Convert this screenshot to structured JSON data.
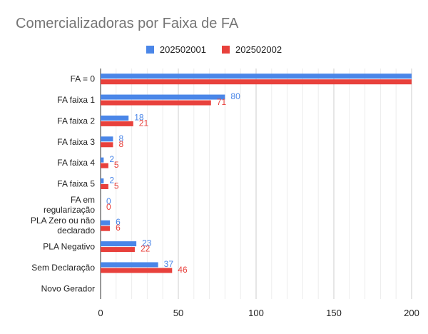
{
  "colors": {
    "series1": "#4a86e8",
    "series2": "#e8413c",
    "grid": "#d9d9d9",
    "axis": "#333333",
    "title": "#757575"
  },
  "chart_data": {
    "type": "bar",
    "orientation": "horizontal",
    "title": "Comercializadoras por Faixa de FA",
    "legend_position": "top",
    "grid": true,
    "xlim": [
      0,
      200
    ],
    "x_ticks": [
      0,
      50,
      100,
      150,
      200
    ],
    "categories": [
      [
        "FA = 0"
      ],
      [
        "FA faixa 1"
      ],
      [
        "FA faixa 2"
      ],
      [
        "FA faixa 3"
      ],
      [
        "FA faixa 4"
      ],
      [
        "FA faixa 5"
      ],
      [
        "FA em",
        "regularização"
      ],
      [
        "PLA Zero ou não",
        "declarado"
      ],
      [
        "PLA Negativo"
      ],
      [
        "Sem Declaração"
      ],
      [
        "Novo Gerador"
      ]
    ],
    "series": [
      {
        "name": "202502001",
        "values": [
          200,
          80,
          18,
          8,
          2,
          2,
          0,
          6,
          23,
          37,
          null
        ],
        "labels": [
          "",
          "80",
          "18",
          "8",
          "2",
          "2",
          "0",
          "6",
          "23",
          "37",
          ""
        ]
      },
      {
        "name": "202502002",
        "values": [
          200,
          71,
          21,
          8,
          5,
          5,
          0,
          6,
          22,
          46,
          null
        ],
        "labels": [
          "",
          "71",
          "21",
          "8",
          "5",
          "5",
          "0",
          "6",
          "22",
          "46",
          ""
        ]
      }
    ]
  }
}
